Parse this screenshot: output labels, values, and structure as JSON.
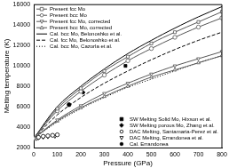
{
  "chart_data": {
    "type": "scatter",
    "x_label": "Pressure (GPa)",
    "y_label": "Melting temperature (K)",
    "xlim": [
      0,
      800
    ],
    "xticks": [
      0,
      100,
      200,
      300,
      400,
      500,
      600,
      700,
      800
    ],
    "ylim": [
      2000,
      16000
    ],
    "yticks": [
      2000,
      4000,
      6000,
      8000,
      10000,
      12000,
      14000,
      16000
    ],
    "grid": false,
    "legend": "upper left",
    "series": [
      {
        "name": "Present fcc Mo",
        "color": "#555555",
        "marker": "square_open",
        "line_style": "solid",
        "x": [
          0,
          100,
          200,
          300,
          400,
          500,
          600,
          700,
          800
        ],
        "values": [
          2900,
          5800,
          7800,
          9500,
          10900,
          12200,
          13300,
          14300,
          15300
        ]
      },
      {
        "name": "Present bcc Mo",
        "color": "#555555",
        "marker": "circle_open",
        "line_style": "solid",
        "x": [
          0,
          100,
          200,
          300,
          400,
          500,
          600,
          700,
          800
        ],
        "values": [
          2900,
          5600,
          7500,
          9100,
          10500,
          11700,
          12800,
          13800,
          14700
        ]
      },
      {
        "name": "Present fcc Mo, corrected",
        "color": "#555555",
        "marker": "triangle_down_open",
        "line_style": "solid",
        "x": [
          0,
          100,
          200,
          300,
          400,
          500,
          600,
          700,
          800
        ],
        "values": [
          2900,
          4700,
          6100,
          7300,
          8300,
          9200,
          10000,
          10700,
          11400
        ]
      },
      {
        "name": "Present bcc Mo, corrected",
        "color": "#555555",
        "marker": "triangle_up_open",
        "line_style": "solid",
        "x": [
          0,
          100,
          200,
          300,
          400,
          500,
          600,
          700,
          800
        ],
        "values": [
          2900,
          4600,
          5900,
          7000,
          8000,
          8900,
          9600,
          10300,
          11000
        ]
      },
      {
        "name": "Cal. bcc Mo, Belonoshko et al.",
        "color": "#000000",
        "marker": "none",
        "line_style": "solid",
        "x": [
          0,
          100,
          200,
          300,
          400,
          500,
          600,
          700,
          800
        ],
        "values": [
          2900,
          6000,
          8000,
          9700,
          11200,
          12500,
          13700,
          14800,
          15800
        ]
      },
      {
        "name": "Cal. fcc Mo, Belonoshko et al.",
        "color": "#000000",
        "marker": "none",
        "line_style": "dashed",
        "x": [
          0,
          100,
          200,
          300,
          400,
          500,
          600,
          700,
          800
        ],
        "values": [
          2900,
          5200,
          6900,
          8300,
          9500,
          10600,
          11600,
          12500,
          13300
        ]
      },
      {
        "name": "Cal. bcc Mo, Cazorla et al.",
        "color": "#000000",
        "marker": "none",
        "line_style": "dotted",
        "x": [
          0,
          100,
          200,
          300,
          400,
          500,
          600,
          700,
          800
        ],
        "values": [
          2900,
          4500,
          5800,
          6900,
          7900,
          8700,
          9500,
          10300,
          11000
        ]
      },
      {
        "name": "SW Melting Solid Mo, Hixson et al.",
        "color": "#000000",
        "marker": "square",
        "line_style": "none",
        "x": [
          390
        ],
        "values": [
          10000
        ]
      },
      {
        "name": "SW Melting porous Mo, Zhang et al.",
        "color": "#000000",
        "marker": "diamond",
        "line_style": "none",
        "x": [
          210
        ],
        "values": [
          7400
        ]
      },
      {
        "name": "DAC Melting, Santamaria-Perez et al.",
        "color": "#000000",
        "marker": "circle_open",
        "line_style": "none",
        "x": [
          10,
          20,
          40,
          60,
          80,
          100
        ],
        "values": [
          2900,
          3000,
          3100,
          3150,
          3200,
          3250
        ]
      },
      {
        "name": "DAC Melting, Errandonea et al.",
        "color": "#000000",
        "marker": "triangle_down_open",
        "line_style": "none",
        "x": [
          5,
          20,
          40,
          60,
          90
        ],
        "values": [
          2900,
          2950,
          3000,
          3050,
          3100
        ]
      },
      {
        "name": "Cal. Errandonea",
        "color": "#000000",
        "marker": "circle",
        "line_style": "none",
        "x": [
          150
        ],
        "values": [
          6200
        ]
      }
    ]
  }
}
